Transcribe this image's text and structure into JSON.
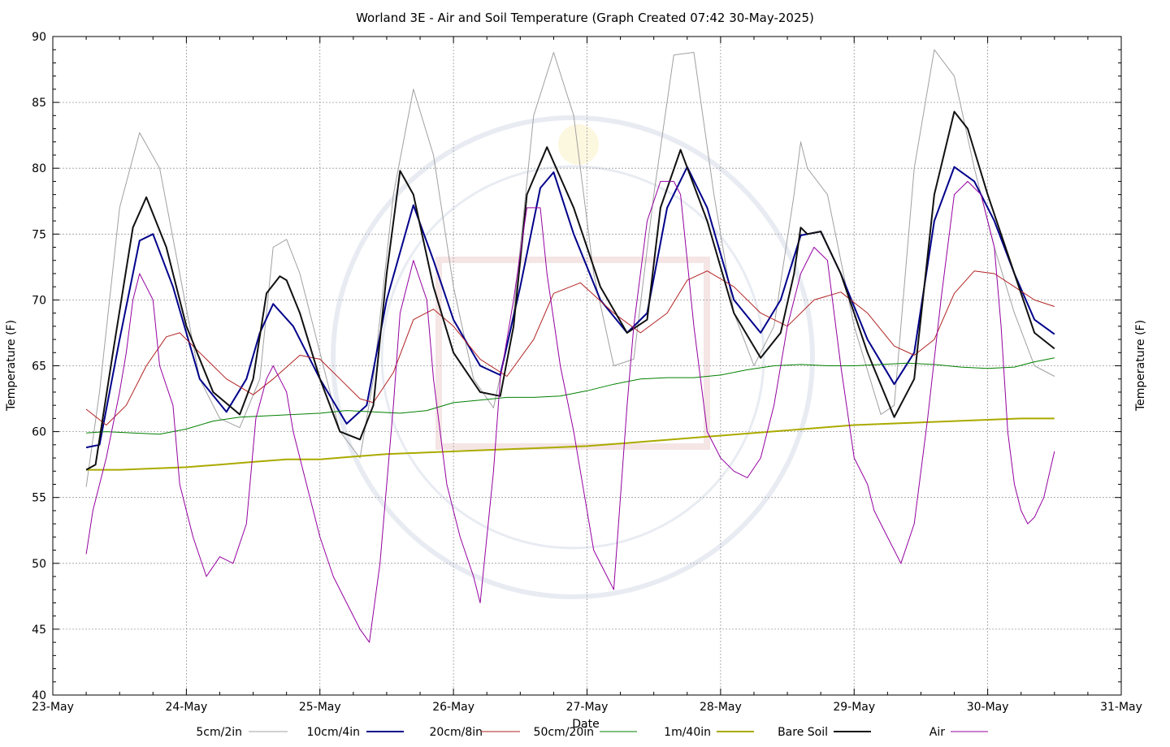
{
  "chart_data": {
    "type": "line",
    "title": "Worland 3E - Air and Soil Temperature (Graph Created 07:42 30-May-2025)",
    "xlabel": "Date",
    "ylabel": "Temperature (F)",
    "ylabel_right": "Temperature (F)",
    "ylim": [
      40,
      90
    ],
    "xlim": [
      0,
      8
    ],
    "y_ticks": [
      40,
      45,
      50,
      55,
      60,
      65,
      70,
      75,
      80,
      85,
      90
    ],
    "x_tick_labels": [
      "23-May",
      "24-May",
      "25-May",
      "26-May",
      "27-May",
      "28-May",
      "29-May",
      "30-May",
      "31-May"
    ],
    "grid": true,
    "legend_position": "bottom",
    "series": [
      {
        "name": "5cm/2in",
        "color": "#a0a0a0",
        "x": [
          0.25,
          0.35,
          0.5,
          0.65,
          0.8,
          0.95,
          1.1,
          1.25,
          1.4,
          1.55,
          1.65,
          1.75,
          1.85,
          2.0,
          2.15,
          2.3,
          2.4,
          2.55,
          2.7,
          2.85,
          3.0,
          3.15,
          3.3,
          3.45,
          3.6,
          3.75,
          3.9,
          4.05,
          4.2,
          4.35,
          4.5,
          4.65,
          4.8,
          4.95,
          5.1,
          5.25,
          5.4,
          5.55,
          5.6,
          5.65,
          5.8,
          6.0,
          6.2,
          6.3,
          6.45,
          6.6,
          6.75,
          6.9,
          7.05,
          7.2,
          7.35,
          7.5
        ],
        "values": [
          55.8,
          63,
          77,
          82.7,
          80,
          72,
          64,
          61,
          60.3,
          64,
          74,
          74.6,
          72,
          66,
          60,
          58,
          64,
          78,
          86,
          81,
          71,
          64,
          61.8,
          69,
          84,
          88.8,
          84,
          72,
          65,
          65.5,
          78,
          88.6,
          88.8,
          78,
          69,
          65,
          68,
          78,
          82,
          80,
          78,
          68,
          61.3,
          62,
          80,
          89,
          87,
          80,
          74,
          69,
          65,
          64.2
        ]
      },
      {
        "name": "10cm/4in",
        "color": "#00008b",
        "x": [
          0.25,
          0.35,
          0.5,
          0.65,
          0.75,
          0.9,
          1.1,
          1.3,
          1.45,
          1.55,
          1.65,
          1.8,
          2.0,
          2.2,
          2.35,
          2.5,
          2.7,
          2.85,
          3.0,
          3.2,
          3.35,
          3.5,
          3.65,
          3.75,
          3.9,
          4.1,
          4.3,
          4.45,
          4.6,
          4.75,
          4.9,
          5.1,
          5.3,
          5.45,
          5.6,
          5.75,
          5.9,
          6.1,
          6.3,
          6.45,
          6.6,
          6.75,
          6.9,
          7.05,
          7.2,
          7.35,
          7.5
        ],
        "values": [
          58.8,
          59,
          67,
          74.5,
          75,
          71,
          64,
          61.5,
          64,
          67.5,
          69.7,
          68,
          64,
          60.6,
          62,
          70,
          77.2,
          73,
          68.5,
          65,
          64.3,
          71,
          78.5,
          79.7,
          75,
          70,
          67.5,
          69,
          77,
          80.1,
          77,
          70,
          67.5,
          70,
          74.9,
          75.2,
          72,
          67,
          63.6,
          66,
          76,
          80.1,
          79,
          76,
          72,
          68.5,
          67.4
        ]
      },
      {
        "name": "20cm/8in",
        "color": "#b22222",
        "x": [
          0.25,
          0.4,
          0.55,
          0.7,
          0.85,
          0.95,
          1.1,
          1.3,
          1.5,
          1.65,
          1.85,
          2.0,
          2.15,
          2.3,
          2.4,
          2.55,
          2.7,
          2.85,
          3.0,
          3.2,
          3.4,
          3.6,
          3.75,
          3.95,
          4.2,
          4.4,
          4.6,
          4.75,
          4.9,
          5.1,
          5.3,
          5.5,
          5.7,
          5.9,
          6.1,
          6.3,
          6.45,
          6.6,
          6.75,
          6.9,
          7.05,
          7.2,
          7.35,
          7.5
        ],
        "values": [
          61.7,
          60.5,
          62,
          65,
          67.2,
          67.5,
          66,
          64,
          62.8,
          64,
          65.8,
          65.5,
          64,
          62.5,
          62.2,
          64.5,
          68.5,
          69.3,
          68,
          65.5,
          64.2,
          67,
          70.5,
          71.3,
          69,
          67.5,
          69,
          71.5,
          72.2,
          71,
          69,
          68,
          70,
          70.6,
          69,
          66.5,
          65.8,
          67,
          70.5,
          72.2,
          72,
          71,
          70,
          69.5
        ]
      },
      {
        "name": "50cm/20in",
        "color": "#008000",
        "x": [
          0.25,
          0.4,
          0.6,
          0.8,
          1.0,
          1.2,
          1.4,
          1.6,
          1.8,
          2.0,
          2.2,
          2.4,
          2.6,
          2.8,
          3.0,
          3.2,
          3.4,
          3.6,
          3.8,
          4.0,
          4.2,
          4.4,
          4.6,
          4.8,
          5.0,
          5.2,
          5.4,
          5.6,
          5.8,
          6.0,
          6.2,
          6.4,
          6.6,
          6.8,
          7.0,
          7.2,
          7.35,
          7.5
        ],
        "values": [
          59.9,
          60,
          59.9,
          59.8,
          60.2,
          60.8,
          61.1,
          61.2,
          61.3,
          61.4,
          61.6,
          61.5,
          61.4,
          61.6,
          62.2,
          62.4,
          62.6,
          62.6,
          62.7,
          63.1,
          63.6,
          64.0,
          64.1,
          64.1,
          64.3,
          64.7,
          65.0,
          65.1,
          65.0,
          65.0,
          65.1,
          65.2,
          65.1,
          64.9,
          64.8,
          64.9,
          65.3,
          65.6
        ]
      },
      {
        "name": "1m/40in",
        "color": "#aaaa00",
        "x": [
          0.25,
          0.5,
          0.75,
          1.0,
          1.25,
          1.5,
          1.75,
          2.0,
          2.25,
          2.5,
          2.75,
          3.0,
          3.25,
          3.5,
          3.75,
          4.0,
          4.25,
          4.5,
          4.75,
          5.0,
          5.25,
          5.5,
          5.75,
          6.0,
          6.25,
          6.5,
          6.75,
          7.0,
          7.25,
          7.5
        ],
        "values": [
          57.1,
          57.1,
          57.2,
          57.3,
          57.5,
          57.7,
          57.9,
          57.9,
          58.1,
          58.3,
          58.4,
          58.5,
          58.6,
          58.7,
          58.8,
          58.9,
          59.1,
          59.3,
          59.5,
          59.7,
          59.9,
          60.1,
          60.3,
          60.5,
          60.6,
          60.7,
          60.8,
          60.9,
          61.0,
          61.0
        ]
      },
      {
        "name": "Bare Soil",
        "color": "#111111",
        "x": [
          0.25,
          0.32,
          0.45,
          0.6,
          0.7,
          0.85,
          1.0,
          1.2,
          1.4,
          1.5,
          1.6,
          1.7,
          1.75,
          1.85,
          2.0,
          2.15,
          2.3,
          2.4,
          2.5,
          2.6,
          2.7,
          2.85,
          3.0,
          3.2,
          3.35,
          3.45,
          3.55,
          3.7,
          3.9,
          4.1,
          4.3,
          4.45,
          4.55,
          4.7,
          4.9,
          5.1,
          5.3,
          5.45,
          5.55,
          5.6,
          5.65,
          5.75,
          5.9,
          6.1,
          6.3,
          6.45,
          6.6,
          6.75,
          6.85,
          7.0,
          7.2,
          7.35,
          7.5
        ],
        "values": [
          57.1,
          57.5,
          66,
          75.5,
          77.8,
          74,
          68,
          63,
          61.3,
          64,
          70.5,
          71.8,
          71.5,
          69,
          64,
          60,
          59.4,
          62,
          72,
          79.8,
          78,
          71,
          66,
          63,
          62.7,
          68,
          78,
          81.6,
          77,
          71,
          67.5,
          68.5,
          77,
          81.4,
          76,
          69,
          65.6,
          67.5,
          72,
          75.5,
          75,
          75.2,
          72,
          66,
          61.1,
          64,
          78,
          84.3,
          83,
          78,
          72,
          67.5,
          66.3
        ]
      },
      {
        "name": "Air",
        "color": "#9400a0",
        "x": [
          0.25,
          0.3,
          0.4,
          0.5,
          0.55,
          0.6,
          0.65,
          0.7,
          0.75,
          0.8,
          0.9,
          0.95,
          1.05,
          1.15,
          1.25,
          1.35,
          1.45,
          1.52,
          1.6,
          1.65,
          1.7,
          1.75,
          1.8,
          1.9,
          2.0,
          2.1,
          2.2,
          2.3,
          2.37,
          2.45,
          2.55,
          2.6,
          2.7,
          2.8,
          2.85,
          2.95,
          3.05,
          3.15,
          3.2,
          3.3,
          3.35,
          3.45,
          3.55,
          3.65,
          3.7,
          3.8,
          3.9,
          4.0,
          4.05,
          4.15,
          4.2,
          4.3,
          4.35,
          4.45,
          4.55,
          4.65,
          4.7,
          4.8,
          4.9,
          5.0,
          5.1,
          5.2,
          5.3,
          5.4,
          5.5,
          5.6,
          5.7,
          5.8,
          5.9,
          6.0,
          6.1,
          6.15,
          6.25,
          6.35,
          6.45,
          6.55,
          6.65,
          6.75,
          6.85,
          6.95,
          7.05,
          7.1,
          7.15,
          7.2,
          7.25,
          7.3,
          7.35,
          7.42,
          7.5
        ],
        "values": [
          50.7,
          54,
          58,
          63,
          66,
          70,
          72,
          71,
          70,
          65,
          62,
          56,
          52,
          49,
          50.5,
          50,
          53,
          61,
          64,
          65,
          64,
          63,
          60,
          56,
          52,
          49,
          47,
          45,
          44,
          50,
          62,
          69,
          73,
          70,
          64,
          56,
          52,
          49,
          47,
          57,
          64,
          70,
          77,
          77,
          72,
          65,
          60,
          54,
          51,
          49,
          48,
          62,
          68,
          76,
          79,
          79,
          78,
          68,
          60,
          58,
          57,
          56.5,
          58,
          62,
          68,
          72,
          74,
          73,
          65,
          58,
          56,
          54,
          52,
          50,
          53,
          61,
          70,
          78,
          79,
          78,
          74,
          68,
          60,
          56,
          54,
          53,
          53.5,
          55,
          58.5
        ]
      }
    ]
  }
}
